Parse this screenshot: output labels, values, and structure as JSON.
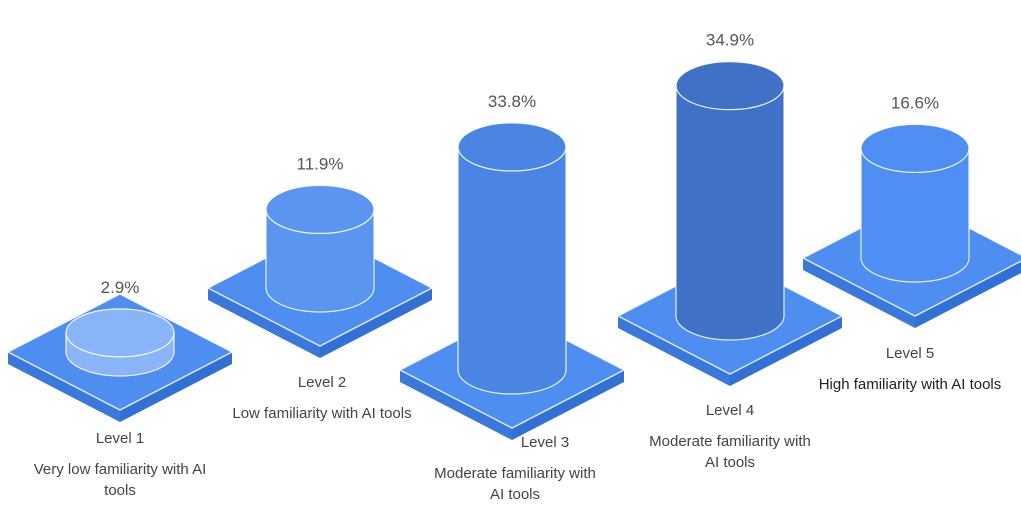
{
  "chart_data": {
    "type": "bar",
    "categories": [
      "Level 1",
      "Level 2",
      "Level 3",
      "Level 4",
      "Level 5"
    ],
    "descriptions": [
      "Very low familiarity with AI tools",
      "Low familiarity with AI tools",
      "Moderate familiarity with AI tools",
      "Moderate familiarity with AI tools",
      "High familiarity with AI tools"
    ],
    "values": [
      2.9,
      11.9,
      33.8,
      34.9,
      16.6
    ],
    "value_labels": [
      "2.9%",
      "11.9%",
      "33.8%",
      "34.9%",
      "16.6%"
    ],
    "unit": "%",
    "title": "",
    "xlabel": "",
    "ylabel": "",
    "legend": "none",
    "grid": false
  },
  "colors": {
    "bar_colors": [
      "#8ab4f8",
      "#5a95f0",
      "#4a85e4",
      "#3f72c7",
      "#4f8ff4"
    ],
    "platform": "#4d8ef0",
    "platform_side": "#3a78dc",
    "value_text": "#555555",
    "label_text": "#444444"
  }
}
